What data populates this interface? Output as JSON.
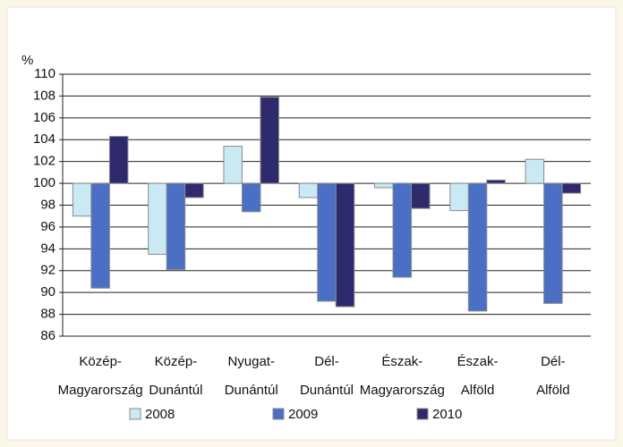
{
  "chart_data": {
    "type": "bar",
    "y_axis_label": "%",
    "categories": [
      [
        "Közép-",
        "Magyarország"
      ],
      [
        "Közép-",
        "Dunántúl"
      ],
      [
        "Nyugat-",
        "Dunántúl"
      ],
      [
        "Dél-",
        "Dunántúl"
      ],
      [
        "Észak-",
        "Magyarország"
      ],
      [
        "Észak-",
        "Alföld"
      ],
      [
        "Dél-",
        "Alföld"
      ]
    ],
    "series": [
      {
        "name": "2008",
        "color": "#c9eaf5",
        "values": [
          97.0,
          93.5,
          103.4,
          98.7,
          99.6,
          97.5,
          102.2
        ]
      },
      {
        "name": "2009",
        "color": "#4a6fc4",
        "values": [
          90.4,
          92.1,
          97.4,
          89.2,
          91.4,
          88.3,
          89.0
        ]
      },
      {
        "name": "2010",
        "color": "#2e2a6b",
        "values": [
          104.3,
          98.7,
          107.9,
          88.7,
          97.7,
          100.3,
          99.1
        ]
      }
    ],
    "base": 100,
    "ylim": [
      86,
      110
    ],
    "yticks": [
      86,
      88,
      90,
      92,
      94,
      96,
      98,
      100,
      102,
      104,
      106,
      108,
      110
    ],
    "grid": true,
    "legend": "bottom"
  }
}
